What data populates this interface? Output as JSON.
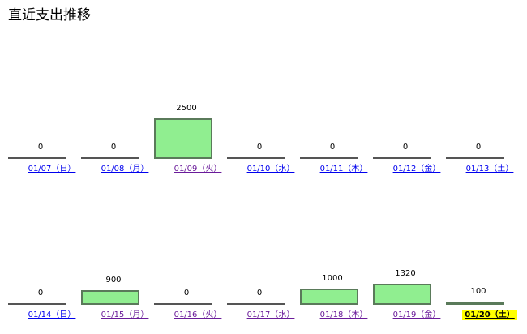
{
  "page": {
    "title": "直近支出推移"
  },
  "colors": {
    "bar_fill": "#90ee90",
    "bar_border": "#5a7a5a",
    "link": "#0000ee",
    "visited_link": "#6a1b9a",
    "today_highlight": "#ffff00"
  },
  "weeks": [
    {
      "days": [
        {
          "date": "01/07（日）",
          "amount": 0,
          "value_label": "0",
          "visited": false,
          "today": false
        },
        {
          "date": "01/08（月）",
          "amount": 0,
          "value_label": "0",
          "visited": false,
          "today": false
        },
        {
          "date": "01/09（火）",
          "amount": 2500,
          "value_label": "2500",
          "visited": true,
          "today": false
        },
        {
          "date": "01/10（水）",
          "amount": 0,
          "value_label": "0",
          "visited": false,
          "today": false
        },
        {
          "date": "01/11（木）",
          "amount": 0,
          "value_label": "0",
          "visited": false,
          "today": false
        },
        {
          "date": "01/12（金）",
          "amount": 0,
          "value_label": "0",
          "visited": false,
          "today": false
        },
        {
          "date": "01/13（土）",
          "amount": 0,
          "value_label": "0",
          "visited": false,
          "today": false
        }
      ]
    },
    {
      "days": [
        {
          "date": "01/14（日）",
          "amount": 0,
          "value_label": "0",
          "visited": false,
          "today": false
        },
        {
          "date": "01/15（月）",
          "amount": 900,
          "value_label": "900",
          "visited": true,
          "today": false
        },
        {
          "date": "01/16（火）",
          "amount": 0,
          "value_label": "0",
          "visited": true,
          "today": false
        },
        {
          "date": "01/17（水）",
          "amount": 0,
          "value_label": "0",
          "visited": true,
          "today": false
        },
        {
          "date": "01/18（木）",
          "amount": 1000,
          "value_label": "1000",
          "visited": true,
          "today": false
        },
        {
          "date": "01/19（金）",
          "amount": 1320,
          "value_label": "1320",
          "visited": true,
          "today": false
        },
        {
          "date": "01/20（土）",
          "amount": 100,
          "value_label": "100",
          "visited": false,
          "today": true
        }
      ]
    }
  ],
  "chart_data": {
    "type": "bar",
    "categories": [
      "01/07（日）",
      "01/08（月）",
      "01/09（火）",
      "01/10（水）",
      "01/11（木）",
      "01/12（金）",
      "01/13（土）",
      "01/14（日）",
      "01/15（月）",
      "01/16（火）",
      "01/17（水）",
      "01/18（木）",
      "01/19（金）",
      "01/20（土）"
    ],
    "values": [
      0,
      0,
      2500,
      0,
      0,
      0,
      0,
      0,
      900,
      0,
      0,
      1000,
      1320,
      100
    ],
    "title": "直近支出推移",
    "xlabel": "",
    "ylabel": ""
  }
}
